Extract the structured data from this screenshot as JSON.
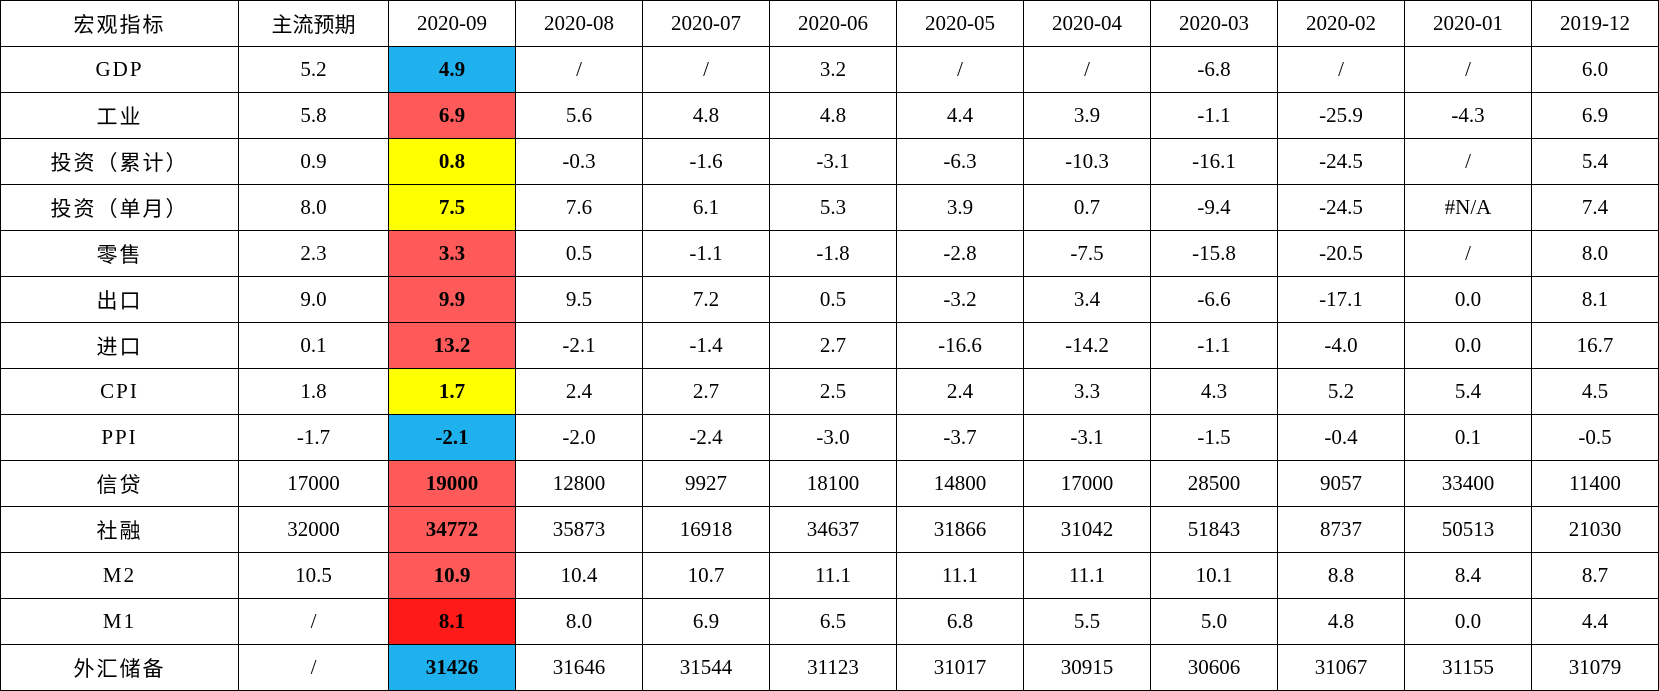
{
  "table": {
    "header": [
      "宏观指标",
      "主流预期",
      "2020-09",
      "2020-08",
      "2020-07",
      "2020-06",
      "2020-05",
      "2020-04",
      "2020-03",
      "2020-02",
      "2020-01",
      "2019-12"
    ],
    "highlight_colors": {
      "blue": "#1fb0ee",
      "red": "#ff5a5a",
      "yellow": "#ffff00",
      "darkred": "#ff1a1a"
    },
    "rows": [
      {
        "label": "GDP",
        "expected": "5.2",
        "current": "4.9",
        "highlight": "blue",
        "history": [
          "/",
          "/",
          "3.2",
          "/",
          "/",
          "-6.8",
          "/",
          "/",
          "6.0"
        ]
      },
      {
        "label": "工业",
        "expected": "5.8",
        "current": "6.9",
        "highlight": "red",
        "history": [
          "5.6",
          "4.8",
          "4.8",
          "4.4",
          "3.9",
          "-1.1",
          "-25.9",
          "-4.3",
          "6.9"
        ]
      },
      {
        "label": "投资（累计）",
        "expected": "0.9",
        "current": "0.8",
        "highlight": "yellow",
        "history": [
          "-0.3",
          "-1.6",
          "-3.1",
          "-6.3",
          "-10.3",
          "-16.1",
          "-24.5",
          "/",
          "5.4"
        ]
      },
      {
        "label": "投资（单月）",
        "expected": "8.0",
        "current": "7.5",
        "highlight": "yellow",
        "history": [
          "7.6",
          "6.1",
          "5.3",
          "3.9",
          "0.7",
          "-9.4",
          "-24.5",
          "#N/A",
          "7.4"
        ]
      },
      {
        "label": "零售",
        "expected": "2.3",
        "current": "3.3",
        "highlight": "red",
        "history": [
          "0.5",
          "-1.1",
          "-1.8",
          "-2.8",
          "-7.5",
          "-15.8",
          "-20.5",
          "/",
          "8.0"
        ]
      },
      {
        "label": "出口",
        "expected": "9.0",
        "current": "9.9",
        "highlight": "red",
        "history": [
          "9.5",
          "7.2",
          "0.5",
          "-3.2",
          "3.4",
          "-6.6",
          "-17.1",
          "0.0",
          "8.1"
        ]
      },
      {
        "label": "进口",
        "expected": "0.1",
        "current": "13.2",
        "highlight": "red",
        "history": [
          "-2.1",
          "-1.4",
          "2.7",
          "-16.6",
          "-14.2",
          "-1.1",
          "-4.0",
          "0.0",
          "16.7"
        ]
      },
      {
        "label": "CPI",
        "expected": "1.8",
        "current": "1.7",
        "highlight": "yellow",
        "history": [
          "2.4",
          "2.7",
          "2.5",
          "2.4",
          "3.3",
          "4.3",
          "5.2",
          "5.4",
          "4.5"
        ]
      },
      {
        "label": "PPI",
        "expected": "-1.7",
        "current": "-2.1",
        "highlight": "blue",
        "history": [
          "-2.0",
          "-2.4",
          "-3.0",
          "-3.7",
          "-3.1",
          "-1.5",
          "-0.4",
          "0.1",
          "-0.5"
        ]
      },
      {
        "label": "信贷",
        "expected": "17000",
        "current": "19000",
        "highlight": "red",
        "history": [
          "12800",
          "9927",
          "18100",
          "14800",
          "17000",
          "28500",
          "9057",
          "33400",
          "11400"
        ]
      },
      {
        "label": "社融",
        "expected": "32000",
        "current": "34772",
        "highlight": "red",
        "history": [
          "35873",
          "16918",
          "34637",
          "31866",
          "31042",
          "51843",
          "8737",
          "50513",
          "21030"
        ]
      },
      {
        "label": "M2",
        "expected": "10.5",
        "current": "10.9",
        "highlight": "red",
        "history": [
          "10.4",
          "10.7",
          "11.1",
          "11.1",
          "11.1",
          "10.1",
          "8.8",
          "8.4",
          "8.7"
        ]
      },
      {
        "label": "M1",
        "expected": "/",
        "current": "8.1",
        "highlight": "darkred",
        "history": [
          "8.0",
          "6.9",
          "6.5",
          "6.8",
          "5.5",
          "5.0",
          "4.8",
          "0.0",
          "4.4"
        ]
      },
      {
        "label": "外汇储备",
        "expected": "/",
        "current": "31426",
        "highlight": "blue",
        "history": [
          "31646",
          "31544",
          "31123",
          "31017",
          "30915",
          "30606",
          "31067",
          "31155",
          "31079"
        ]
      }
    ]
  }
}
